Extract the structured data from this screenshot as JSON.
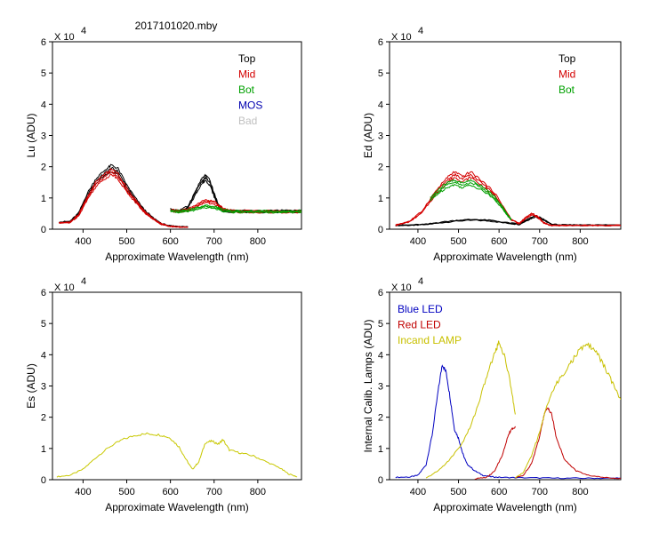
{
  "file_title": "2017101020.mby",
  "chart_data": [
    {
      "id": "lu",
      "type": "line",
      "ylabel": "Lu (ADU)",
      "xlabel": "Approximate Wavelength (nm)",
      "exponent_base": "X 10",
      "exponent_power": "4",
      "xlim": [
        330,
        900
      ],
      "ylim": [
        0,
        60000
      ],
      "xticks": [
        400,
        500,
        600,
        700,
        800
      ],
      "yticks": [
        0,
        1,
        2,
        3,
        4,
        5,
        6
      ],
      "legend": [
        {
          "name": "Top",
          "color": "#000000"
        },
        {
          "name": "Mid",
          "color": "#d40000"
        },
        {
          "name": "Bot",
          "color": "#00a000"
        },
        {
          "name": "MOS",
          "color": "#0000b0"
        },
        {
          "name": "Bad",
          "color": "#c0c0c0"
        }
      ],
      "series": [
        {
          "name": "Top",
          "color": "#000000",
          "x": [
            345,
            370,
            390,
            410,
            430,
            450,
            465,
            480,
            500,
            520,
            540,
            560,
            580,
            600,
            620,
            640
          ],
          "y": [
            2200,
            2400,
            5000,
            11000,
            15500,
            18000,
            19500,
            18500,
            13500,
            9500,
            6000,
            3500,
            1700,
            1000,
            800,
            700
          ]
        },
        {
          "name": "Top",
          "color": "#000000",
          "x": [
            600,
            620,
            640,
            655,
            670,
            680,
            690,
            700,
            710,
            720,
            740,
            780,
            820,
            860,
            900
          ],
          "y": [
            6200,
            5800,
            7000,
            11000,
            15000,
            16500,
            15000,
            11000,
            7500,
            6000,
            5800,
            5700,
            5700,
            5700,
            5800
          ]
        },
        {
          "name": "Mid",
          "color": "#d40000",
          "x": [
            345,
            370,
            390,
            410,
            430,
            450,
            465,
            480,
            500,
            520,
            540,
            560,
            580,
            600,
            620,
            640
          ],
          "y": [
            2000,
            2200,
            4500,
            10000,
            14500,
            17000,
            18500,
            17000,
            12500,
            9000,
            5600,
            3300,
            1600,
            900,
            700,
            600
          ]
        },
        {
          "name": "Mid",
          "color": "#d40000",
          "x": [
            600,
            620,
            640,
            660,
            680,
            700,
            720,
            740,
            780,
            820,
            860,
            900
          ],
          "y": [
            6000,
            5700,
            6200,
            7500,
            9000,
            8500,
            6500,
            5800,
            5600,
            5600,
            5600,
            5700
          ]
        },
        {
          "name": "Bot",
          "color": "#00a000",
          "x": [
            600,
            620,
            640,
            660,
            680,
            700,
            720,
            740,
            780,
            820,
            860,
            900
          ],
          "y": [
            5900,
            5600,
            5900,
            6600,
            7300,
            7000,
            6100,
            5700,
            5600,
            5600,
            5600,
            5700
          ]
        }
      ]
    },
    {
      "id": "ed",
      "type": "line",
      "ylabel": "Ed  (ADU)",
      "xlabel": "Approximate Wavelength (nm)",
      "exponent_base": "X 10",
      "exponent_power": "4",
      "xlim": [
        330,
        900
      ],
      "ylim": [
        0,
        60000
      ],
      "xticks": [
        400,
        500,
        600,
        700,
        800
      ],
      "yticks": [
        0,
        1,
        2,
        3,
        4,
        5,
        6
      ],
      "legend": [
        {
          "name": "Top",
          "color": "#000000"
        },
        {
          "name": "Mid",
          "color": "#d40000"
        },
        {
          "name": "Bot",
          "color": "#00a000"
        }
      ],
      "series": [
        {
          "name": "Top",
          "color": "#000000",
          "x": [
            345,
            380,
            420,
            460,
            500,
            540,
            580,
            620,
            650,
            670,
            690,
            710,
            730,
            760,
            800,
            850,
            900
          ],
          "y": [
            1200,
            1300,
            1500,
            2200,
            2800,
            3000,
            2700,
            2000,
            1600,
            3000,
            4200,
            3000,
            1500,
            1300,
            1300,
            1300,
            1300
          ]
        },
        {
          "name": "Mid",
          "color": "#d40000",
          "x": [
            345,
            380,
            410,
            440,
            470,
            490,
            510,
            530,
            560,
            590,
            610,
            630,
            650,
            665,
            680,
            695,
            710,
            730,
            760,
            800,
            850,
            900
          ],
          "y": [
            1300,
            2500,
            5500,
            11000,
            15500,
            17500,
            16000,
            17500,
            14500,
            11000,
            7000,
            3000,
            1800,
            3500,
            4800,
            4000,
            2000,
            1200,
            1200,
            1200,
            1200,
            1200
          ]
        },
        {
          "name": "Bot",
          "color": "#00a000",
          "x": [
            430,
            450,
            470,
            490,
            510,
            530,
            560,
            590,
            610,
            630
          ],
          "y": [
            9500,
            12000,
            14000,
            15000,
            14000,
            15000,
            13000,
            10000,
            6500,
            3000
          ]
        }
      ]
    },
    {
      "id": "es",
      "type": "line",
      "ylabel": "Es  (ADU)",
      "xlabel": "Approximate Wavelength (nm)",
      "exponent_base": "X 10",
      "exponent_power": "4",
      "xlim": [
        330,
        900
      ],
      "ylim": [
        0,
        60000
      ],
      "xticks": [
        400,
        500,
        600,
        700,
        800
      ],
      "yticks": [
        0,
        1,
        2,
        3,
        4,
        5,
        6
      ],
      "legend": [],
      "series": [
        {
          "name": "Es",
          "color": "#c8c800",
          "x": [
            340,
            370,
            400,
            430,
            460,
            490,
            520,
            550,
            580,
            600,
            620,
            635,
            650,
            665,
            680,
            695,
            710,
            720,
            735,
            760,
            790,
            820,
            850,
            870,
            890
          ],
          "y": [
            1000,
            1500,
            3500,
            7500,
            11000,
            13500,
            15000,
            15500,
            15000,
            14000,
            11000,
            7000,
            3500,
            6000,
            12500,
            13000,
            12000,
            13500,
            10000,
            9000,
            8000,
            6000,
            4000,
            2000,
            1000
          ]
        }
      ]
    },
    {
      "id": "calib",
      "type": "line",
      "ylabel": "Internal Calib. Lamps (ADU)",
      "xlabel": "Approximate Wavelength (nm)",
      "exponent_base": "X 10",
      "exponent_power": "4",
      "xlim": [
        330,
        900
      ],
      "ylim": [
        0,
        60000
      ],
      "xticks": [
        400,
        500,
        600,
        700,
        800
      ],
      "yticks": [
        0,
        1,
        2,
        3,
        4,
        5,
        6
      ],
      "legend": [
        {
          "name": "Blue LED",
          "color": "#0000c0"
        },
        {
          "name": "Red LED",
          "color": "#c00000"
        },
        {
          "name": "Incand LAMP",
          "color": "#c8c000"
        }
      ],
      "series": [
        {
          "name": "Blue LED",
          "color": "#0000c0",
          "x": [
            345,
            380,
            400,
            420,
            435,
            450,
            460,
            470,
            480,
            490,
            500,
            510,
            520,
            540,
            560,
            580,
            600,
            640,
            700,
            760,
            820,
            880,
            900
          ],
          "y": [
            800,
            900,
            1500,
            5000,
            15000,
            30000,
            39000,
            36000,
            27000,
            17000,
            14000,
            9000,
            5500,
            3000,
            1500,
            1000,
            800,
            700,
            600,
            500,
            500,
            500,
            500
          ]
        },
        {
          "name": "Red LED",
          "color": "#c00000",
          "x": [
            540,
            570,
            590,
            610,
            620,
            630,
            640
          ],
          "y": [
            300,
            800,
            3000,
            9000,
            14000,
            17000,
            18000
          ]
        },
        {
          "name": "Red LED",
          "color": "#c00000",
          "x": [
            640,
            660,
            680,
            700,
            710,
            720,
            730,
            740,
            760,
            790,
            820,
            860,
            900
          ],
          "y": [
            600,
            1500,
            5500,
            14500,
            21500,
            24500,
            22000,
            15000,
            7000,
            3000,
            1500,
            700,
            500
          ]
        },
        {
          "name": "Incand LAMP",
          "color": "#c8c000",
          "x": [
            420,
            450,
            480,
            510,
            530,
            550,
            570,
            590,
            600,
            615,
            630,
            640
          ],
          "y": [
            500,
            3000,
            7000,
            12500,
            18000,
            26000,
            35000,
            43000,
            46500,
            41000,
            31000,
            22000
          ]
        },
        {
          "name": "Incand LAMP",
          "color": "#c8c000",
          "x": [
            640,
            660,
            680,
            700,
            720,
            740,
            760,
            780,
            800,
            820,
            840,
            860,
            880,
            900
          ],
          "y": [
            600,
            2500,
            8000,
            16000,
            26000,
            32000,
            36000,
            40000,
            44000,
            45500,
            43000,
            38000,
            32500,
            27000
          ]
        }
      ]
    }
  ]
}
